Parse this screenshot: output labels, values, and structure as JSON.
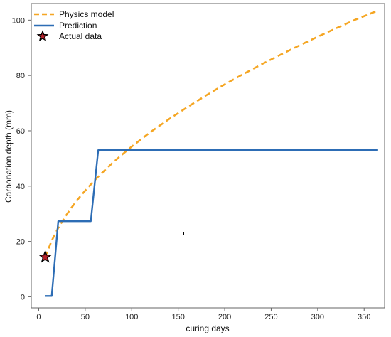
{
  "chart_data": {
    "type": "line",
    "xlabel": "curing days",
    "ylabel": "Carbonation depth (mm)",
    "xlim": [
      -8,
      372
    ],
    "ylim": [
      -4,
      106
    ],
    "x_ticks": [
      0,
      50,
      100,
      150,
      200,
      250,
      300,
      350
    ],
    "y_ticks": [
      0,
      20,
      40,
      60,
      80,
      100
    ],
    "grid": false,
    "legend_position": "top-left",
    "series": [
      {
        "name": "Physics model",
        "kind": "line",
        "style": "dashed",
        "color": "#f5a623",
        "x": [
          7,
          14,
          21,
          28,
          35,
          42,
          49,
          56,
          63,
          70,
          80,
          90,
          100,
          120,
          140,
          160,
          180,
          200,
          220,
          240,
          260,
          280,
          300,
          320,
          340,
          365
        ],
        "y": [
          14.4,
          20.3,
          24.9,
          28.7,
          32.1,
          35.2,
          38.0,
          40.6,
          43.1,
          45.4,
          48.6,
          51.5,
          54.3,
          59.5,
          64.2,
          68.6,
          72.8,
          76.8,
          80.5,
          84.1,
          87.5,
          90.8,
          94.0,
          97.1,
          100.1,
          103.5
        ]
      },
      {
        "name": "Prediction",
        "kind": "step",
        "style": "solid",
        "color": "#2d6db5",
        "x": [
          7,
          14,
          21,
          56,
          64,
          365
        ],
        "y": [
          0.3,
          0.3,
          27.3,
          27.3,
          53.0,
          53.0
        ]
      },
      {
        "name": "Actual data",
        "kind": "marker",
        "marker": "star",
        "color": "#b3202a",
        "edge_color": "#000000",
        "x": [
          7
        ],
        "y": [
          14.4
        ]
      }
    ]
  }
}
